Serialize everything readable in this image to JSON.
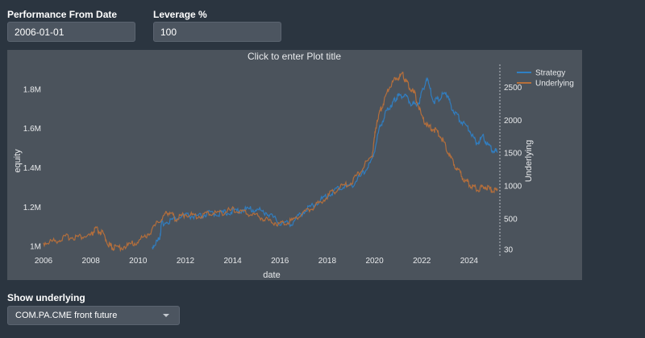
{
  "controls": {
    "performance_label": "Performance From Date",
    "performance_value": "2006-01-01",
    "leverage_label": "Leverage %",
    "leverage_value": "100",
    "underlying_label": "Show underlying",
    "underlying_selected": "COM.PA.CME front future"
  },
  "plot": {
    "title_placeholder": "Click to enter Plot title",
    "background": "#4b535c"
  },
  "chart_data": {
    "type": "line",
    "xlabel": "date",
    "ylabel": "equity",
    "y2label": "Underlying",
    "xlim": [
      2006,
      2025.3
    ],
    "ylim": [
      970000,
      1920000
    ],
    "y2lim": [
      -10,
      2830
    ],
    "x_ticks": [
      2006,
      2008,
      2010,
      2012,
      2014,
      2016,
      2018,
      2020,
      2022,
      2024
    ],
    "y_ticks": [
      1000000,
      1200000,
      1400000,
      1600000,
      1800000
    ],
    "y_tick_labels": [
      "1M",
      "1.2M",
      "1.4M",
      "1.6M",
      "1.8M"
    ],
    "y2_ticks": [
      30,
      500,
      1000,
      1500,
      2000,
      2500
    ],
    "y2_tick_labels": [
      "30",
      "500",
      "1000",
      "1500",
      "2000",
      "2500"
    ],
    "legend_position": "top-right",
    "series": [
      {
        "name": "Strategy",
        "color": "#2f80c4",
        "axis": "y",
        "points": [
          [
            2010.6,
            1000000
          ],
          [
            2010.9,
            1040000
          ],
          [
            2011.0,
            1120000
          ],
          [
            2011.5,
            1140000
          ],
          [
            2012.0,
            1160000
          ],
          [
            2012.5,
            1150000
          ],
          [
            2013.0,
            1170000
          ],
          [
            2013.5,
            1170000
          ],
          [
            2014.0,
            1180000
          ],
          [
            2014.5,
            1190000
          ],
          [
            2015.0,
            1190000
          ],
          [
            2015.5,
            1170000
          ],
          [
            2016.0,
            1120000
          ],
          [
            2016.5,
            1120000
          ],
          [
            2017.0,
            1180000
          ],
          [
            2017.5,
            1220000
          ],
          [
            2018.0,
            1260000
          ],
          [
            2018.5,
            1300000
          ],
          [
            2019.0,
            1310000
          ],
          [
            2019.5,
            1370000
          ],
          [
            2019.9,
            1440000
          ],
          [
            2020.2,
            1600000
          ],
          [
            2020.5,
            1690000
          ],
          [
            2020.8,
            1740000
          ],
          [
            2021.0,
            1770000
          ],
          [
            2021.3,
            1770000
          ],
          [
            2021.6,
            1720000
          ],
          [
            2021.9,
            1740000
          ],
          [
            2022.2,
            1860000
          ],
          [
            2022.5,
            1740000
          ],
          [
            2022.8,
            1760000
          ],
          [
            2023.0,
            1790000
          ],
          [
            2023.3,
            1700000
          ],
          [
            2023.6,
            1650000
          ],
          [
            2024.0,
            1600000
          ],
          [
            2024.3,
            1530000
          ],
          [
            2024.6,
            1560000
          ],
          [
            2024.9,
            1500000
          ],
          [
            2025.2,
            1480000
          ]
        ]
      },
      {
        "name": "Underlying",
        "color": "#b8703a",
        "axis": "y2",
        "points": [
          [
            2006.0,
            140
          ],
          [
            2006.5,
            170
          ],
          [
            2007.0,
            230
          ],
          [
            2007.5,
            230
          ],
          [
            2008.0,
            250
          ],
          [
            2008.2,
            350
          ],
          [
            2008.5,
            280
          ],
          [
            2008.8,
            90
          ],
          [
            2009.0,
            60
          ],
          [
            2009.5,
            90
          ],
          [
            2010.0,
            160
          ],
          [
            2010.5,
            300
          ],
          [
            2011.0,
            520
          ],
          [
            2011.3,
            620
          ],
          [
            2011.6,
            500
          ],
          [
            2012.0,
            580
          ],
          [
            2012.5,
            540
          ],
          [
            2013.0,
            590
          ],
          [
            2013.5,
            600
          ],
          [
            2014.0,
            640
          ],
          [
            2014.5,
            600
          ],
          [
            2015.0,
            560
          ],
          [
            2015.5,
            480
          ],
          [
            2016.0,
            430
          ],
          [
            2016.5,
            480
          ],
          [
            2017.0,
            600
          ],
          [
            2017.5,
            700
          ],
          [
            2018.0,
            850
          ],
          [
            2018.5,
            980
          ],
          [
            2019.0,
            1050
          ],
          [
            2019.5,
            1280
          ],
          [
            2019.9,
            1480
          ],
          [
            2020.1,
            2000
          ],
          [
            2020.3,
            2200
          ],
          [
            2020.6,
            2500
          ],
          [
            2020.9,
            2650
          ],
          [
            2021.2,
            2700
          ],
          [
            2021.4,
            2550
          ],
          [
            2021.7,
            2400
          ],
          [
            2022.0,
            2050
          ],
          [
            2022.3,
            1900
          ],
          [
            2022.6,
            1850
          ],
          [
            2022.9,
            1700
          ],
          [
            2023.2,
            1450
          ],
          [
            2023.5,
            1250
          ],
          [
            2023.8,
            1100
          ],
          [
            2024.1,
            1000
          ],
          [
            2024.4,
            960
          ],
          [
            2024.7,
            1000
          ],
          [
            2025.0,
            930
          ],
          [
            2025.2,
            960
          ]
        ]
      }
    ]
  }
}
